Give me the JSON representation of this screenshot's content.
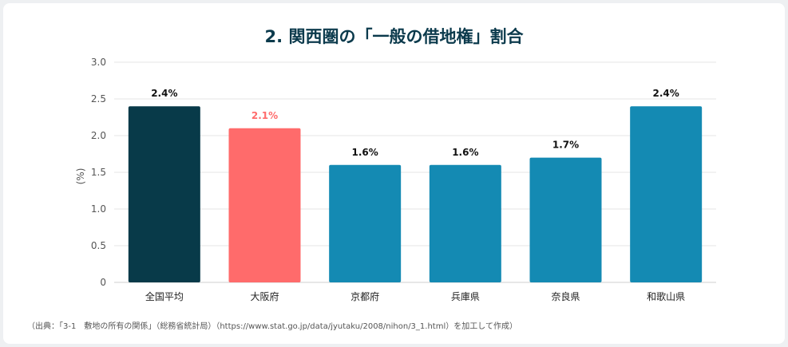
{
  "chart_data": {
    "type": "bar",
    "title": "2. 関西圏の「一般の借地権」割合",
    "ylabel": "(%)",
    "xlabel": "",
    "ylim": [
      0,
      3.0
    ],
    "y_ticks": [
      "0",
      "0.5",
      "1.0",
      "1.5",
      "2.0",
      "2.5",
      "3.0"
    ],
    "y_tick_values": [
      0,
      0.5,
      1.0,
      1.5,
      2.0,
      2.5,
      3.0
    ],
    "grid": true,
    "categories": [
      "全国平均",
      "大阪府",
      "京都府",
      "兵庫県",
      "奈良県",
      "和歌山県"
    ],
    "values": [
      2.4,
      2.1,
      1.6,
      1.6,
      1.7,
      2.4
    ],
    "data_labels": [
      "2.4%",
      "2.1%",
      "1.6%",
      "1.6%",
      "1.7%",
      "2.4%"
    ],
    "bar_colors": [
      "#083a49",
      "#ff6b6b",
      "#148ab3",
      "#148ab3",
      "#148ab3",
      "#148ab3"
    ],
    "label_colors": [
      "#111111",
      "#ff6b6b",
      "#111111",
      "#111111",
      "#111111",
      "#111111"
    ]
  },
  "source": "（出典：「3-1　敷地の所有の関係」（総務省統計局）（https://www.stat.go.jp/data/jyutaku/2008/nihon/3_1.html）を加工して作成）"
}
